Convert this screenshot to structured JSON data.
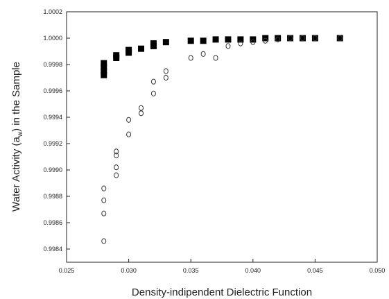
{
  "chart_data": {
    "type": "scatter",
    "xlabel": "Density-indipendent Dielectric Function",
    "ylabel_prefix": "Water Activity (a",
    "ylabel_sub": "w",
    "ylabel_suffix": ") in the Sample",
    "xlim": [
      0.025,
      0.05
    ],
    "ylim": [
      0.9983,
      1.0002
    ],
    "x_ticks": [
      "0.025",
      "0.030",
      "0.035",
      "0.040",
      "0.045",
      "0.050"
    ],
    "y_ticks": [
      "0.9984",
      "0.9986",
      "0.9988",
      "0.9990",
      "0.9992",
      "0.9994",
      "0.9996",
      "0.9998",
      "1.0000",
      "1.0002"
    ],
    "x_tick_values": [
      0.025,
      0.03,
      0.035,
      0.04,
      0.045,
      0.05
    ],
    "y_tick_values": [
      0.9984,
      0.9986,
      0.9988,
      0.999,
      0.9992,
      0.9994,
      0.9996,
      0.9998,
      1.0,
      1.0002
    ],
    "grid": false,
    "series": [
      {
        "marker": "filled-square",
        "color": "#000000",
        "x": [
          0.028,
          0.028,
          0.028,
          0.028,
          0.029,
          0.029,
          0.03,
          0.03,
          0.031,
          0.032,
          0.032,
          0.033,
          0.035,
          0.036,
          0.037,
          0.038,
          0.039,
          0.04,
          0.041,
          0.042,
          0.043,
          0.044,
          0.045,
          0.047
        ],
        "y": [
          0.99972,
          0.99975,
          0.99978,
          0.99981,
          0.99985,
          0.99987,
          0.99989,
          0.99991,
          0.99992,
          0.99994,
          0.99996,
          0.99997,
          0.99998,
          0.99998,
          0.99999,
          0.99999,
          0.99999,
          0.99999,
          1.0,
          1.0,
          1.0,
          1.0,
          1.0,
          1.0
        ]
      },
      {
        "marker": "open-circle",
        "color": "#333333",
        "x": [
          0.028,
          0.028,
          0.028,
          0.028,
          0.029,
          0.029,
          0.029,
          0.029,
          0.03,
          0.03,
          0.031,
          0.031,
          0.032,
          0.032,
          0.033,
          0.033,
          0.035,
          0.036,
          0.037,
          0.038,
          0.039,
          0.04,
          0.041,
          0.042,
          0.043,
          0.044,
          0.045,
          0.047
        ],
        "y": [
          0.99846,
          0.99867,
          0.99877,
          0.99886,
          0.99896,
          0.99902,
          0.99911,
          0.99914,
          0.99927,
          0.99938,
          0.99943,
          0.99947,
          0.99958,
          0.99967,
          0.9997,
          0.99975,
          0.99985,
          0.99988,
          0.99985,
          0.99994,
          0.99996,
          0.99997,
          0.99998,
          0.99999,
          1.0,
          1.0,
          1.0,
          1.0
        ]
      }
    ]
  }
}
